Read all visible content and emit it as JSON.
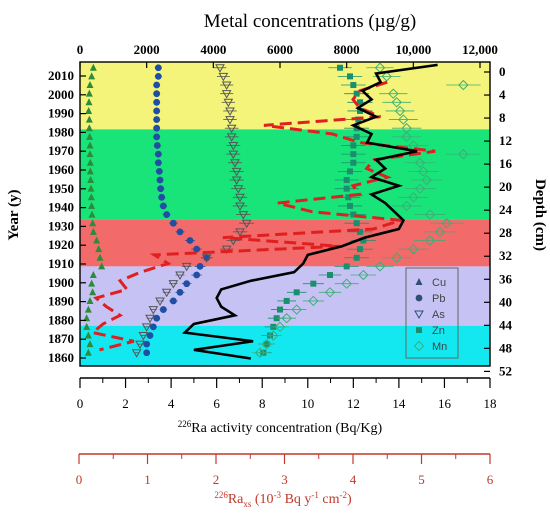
{
  "chart_data": {
    "type": "line",
    "title": "Metal concentrations (µg/g)",
    "axes": {
      "top_x": {
        "label": "Metal concentrations (µg/g)",
        "range": [
          0,
          12000
        ],
        "ticks": [
          "0",
          "2000",
          "4000",
          "6000",
          "8000",
          "10,000",
          "12,000"
        ]
      },
      "left_y": {
        "label": "Year (y)",
        "ticks": [
          "2010",
          "2000",
          "1990",
          "1980",
          "1970",
          "1960",
          "1950",
          "1940",
          "1930",
          "1920",
          "1910",
          "1900",
          "1890",
          "1880",
          "1870",
          "1860"
        ]
      },
      "right_y": {
        "label": "Depth (cm)",
        "range": [
          0,
          52
        ],
        "ticks": [
          "0",
          "4",
          "8",
          "12",
          "16",
          "20",
          "24",
          "28",
          "32",
          "36",
          "40",
          "44",
          "48",
          "52"
        ]
      },
      "bottom_x": {
        "label_prefix": "226",
        "label": "Ra activity concentration (Bq/Kg)",
        "range": [
          0,
          18
        ],
        "ticks": [
          "0",
          "2",
          "4",
          "6",
          "8",
          "10",
          "12",
          "14",
          "16",
          "18"
        ]
      },
      "bottom_x_red": {
        "label_prefix": "226",
        "label_main": "Ra",
        "label_sub": "xs",
        "label_rest": " (10",
        "label_exp": "-3",
        "label_rest2": " Bq y",
        "label_exp2": "-1",
        "label_rest3": " cm",
        "label_exp3": "-2",
        "label_end": ")",
        "range": [
          0,
          6
        ],
        "ticks": [
          "0",
          "1",
          "2",
          "3",
          "4",
          "5",
          "6"
        ]
      }
    },
    "bands": [
      {
        "from_depth": 0,
        "to_depth": 11.7,
        "color": "#f4f47a"
      },
      {
        "from_depth": 11.7,
        "to_depth": 27.3,
        "color": "#19e47a"
      },
      {
        "from_depth": 27.3,
        "to_depth": 35.5,
        "color": "#f26a6a"
      },
      {
        "from_depth": 35.5,
        "to_depth": 45.8,
        "color": "#c7c2f4"
      },
      {
        "from_depth": 45.8,
        "to_depth": 52.8,
        "color": "#13e8f0"
      }
    ],
    "legend": [
      {
        "name": "Cu",
        "marker": "triangle-up"
      },
      {
        "name": "Pb",
        "marker": "circle"
      },
      {
        "name": "As",
        "marker": "triangle-down"
      },
      {
        "name": "Zn",
        "marker": "square"
      },
      {
        "name": "Mn",
        "marker": "diamond"
      }
    ],
    "series": [
      {
        "name": "Cu",
        "color": "#2e8b3a",
        "depths": [
          1,
          2.5,
          4,
          5.5,
          7,
          8.5,
          10,
          11.5,
          13,
          14.5,
          16,
          17.5,
          19,
          20.5,
          22,
          23.5,
          25,
          26.5,
          28,
          29.5,
          31,
          32.5,
          34,
          35.5,
          37,
          38.5,
          40,
          41.5,
          43,
          44.5,
          46,
          47.5,
          49,
          50.5
        ],
        "values": [
          400,
          350,
          300,
          280,
          270,
          260,
          280,
          280,
          290,
          300,
          300,
          310,
          310,
          320,
          330,
          340,
          350,
          360,
          380,
          400,
          500,
          560,
          600,
          650,
          400,
          350,
          380,
          300,
          250,
          200,
          200,
          250,
          300,
          250
        ]
      },
      {
        "name": "Pb",
        "color": "#1f4ea3",
        "depths": [
          1,
          2.5,
          4,
          5.5,
          7,
          8.5,
          10,
          11.5,
          13,
          14.5,
          16,
          17.5,
          19,
          20.5,
          22,
          23.5,
          25,
          26.5,
          28,
          29.5,
          31,
          32.5,
          34,
          35.5,
          37,
          38.5,
          40,
          41.5,
          43,
          44.5,
          46,
          47.5,
          49,
          50.5
        ],
        "values": [
          2350,
          2350,
          2300,
          2300,
          2300,
          2300,
          2300,
          2300,
          2300,
          2320,
          2350,
          2350,
          2380,
          2400,
          2420,
          2450,
          2500,
          2600,
          2800,
          3000,
          3300,
          3500,
          3800,
          3600,
          3500,
          3200,
          3000,
          2800,
          2500,
          2300,
          2200,
          2100,
          2000,
          2000
        ]
      },
      {
        "name": "As",
        "color": "#555555",
        "depths": [
          1,
          2.5,
          4,
          5.5,
          7,
          8.5,
          10,
          11.5,
          13,
          14.5,
          16,
          17.5,
          19,
          20.5,
          22,
          23.5,
          25,
          26.5,
          28,
          29.5,
          31,
          32.5,
          34,
          35.5,
          37,
          38.5,
          40,
          41.5,
          43,
          44.5,
          46,
          47.5,
          49,
          50.5
        ],
        "values": [
          4200,
          4300,
          4400,
          4400,
          4450,
          4500,
          4500,
          4550,
          4550,
          4600,
          4600,
          4650,
          4700,
          4700,
          4750,
          4800,
          4800,
          4900,
          5000,
          4800,
          4600,
          4400,
          3800,
          3200,
          3000,
          2800,
          2600,
          2400,
          2200,
          2100,
          2000,
          1900,
          1800,
          1700
        ]
      },
      {
        "name": "Zn",
        "color": "#1a8f6e",
        "depths": [
          1,
          2.5,
          4,
          5.5,
          7,
          8.5,
          10,
          11.5,
          13,
          14.5,
          16,
          17.5,
          19,
          20.5,
          22,
          23.5,
          25,
          26.5,
          28,
          29.5,
          31,
          32.5,
          34,
          35.5,
          37,
          38.5,
          40,
          41.5,
          43,
          44.5,
          46,
          47.5,
          49,
          50.5
        ],
        "values": [
          7800,
          8100,
          8200,
          8300,
          8400,
          8400,
          8350,
          8300,
          8300,
          8200,
          8200,
          8200,
          8100,
          8000,
          8000,
          8050,
          8100,
          8200,
          8300,
          8400,
          8500,
          8400,
          8300,
          8000,
          7500,
          7000,
          6500,
          6200,
          6000,
          5900,
          5800,
          5700,
          5600,
          5500
        ]
      },
      {
        "name": "Mn",
        "color": "#3cae78",
        "depths": [
          1,
          2.5,
          4,
          5.5,
          7,
          8.5,
          10,
          11.5,
          13,
          14.5,
          16,
          17.5,
          19,
          20.5,
          22,
          23.5,
          25,
          26.5,
          28,
          29.5,
          31,
          32.5,
          34,
          35.5,
          37,
          38.5,
          40,
          41.5,
          43,
          44.5,
          46,
          47.5,
          49,
          50.5
        ],
        "values": [
          9000,
          9200,
          11500,
          9400,
          9500,
          9600,
          9700,
          9800,
          9800,
          10000,
          11500,
          10200,
          10300,
          10400,
          10200,
          10000,
          9800,
          10500,
          11000,
          10800,
          10500,
          10000,
          9500,
          9000,
          8500,
          8000,
          7500,
          7000,
          6500,
          6200,
          6000,
          5800,
          5600,
          5400
        ]
      }
    ],
    "ra_activity": {
      "name": "226Ra activity",
      "color": "#000000",
      "depths": [
        0.5,
        2,
        3.5,
        5,
        6.5,
        8,
        9.5,
        11,
        12.5,
        14,
        15.5,
        17,
        18.5,
        20,
        21.5,
        23,
        24.5,
        26,
        27.5,
        29,
        30.5,
        32,
        33.5,
        35,
        36.5,
        38,
        39.5,
        41,
        42.5,
        44,
        45.5,
        47,
        48.5,
        50,
        51.5
      ],
      "values": [
        15.7,
        13.0,
        13.2,
        12.4,
        12.8,
        12.2,
        13.0,
        12.0,
        12.8,
        12.6,
        14.8,
        13.0,
        13.4,
        12.8,
        14.0,
        12.8,
        13.4,
        13.8,
        14.2,
        14.0,
        12.5,
        11.5,
        10.0,
        9.8,
        9.4,
        7.5,
        6.2,
        6.0,
        6.2,
        6.8,
        5.0,
        4.6,
        7.6,
        5.0,
        7.5
      ]
    },
    "ra_xs_dashed": {
      "name": "226Raxs",
      "color": "#e02020",
      "depths": [
        3.5,
        5,
        6.5,
        8,
        9.5,
        11,
        12.5,
        14,
        15.5,
        17,
        18.5,
        20,
        21.5,
        23,
        24.5,
        26,
        27.5,
        29,
        30.5,
        32,
        33.5,
        35,
        36.5,
        38,
        39.5,
        41,
        42.5,
        44,
        45.5,
        47,
        48.5,
        50
      ],
      "values": [
        4.5,
        4.1,
        4.0,
        4.1,
        4.4,
        2.7,
        3.7,
        4.1,
        5.2,
        4.3,
        4.2,
        4.5,
        4.0,
        4.1,
        2.9,
        3.4,
        4.7,
        4.3,
        2.1,
        3.8,
        1.1,
        1.3,
        0.9,
        0.6,
        0.7,
        0.25,
        0.4,
        0.6,
        0.35,
        0.2,
        0.8,
        0.3
      ]
    }
  }
}
